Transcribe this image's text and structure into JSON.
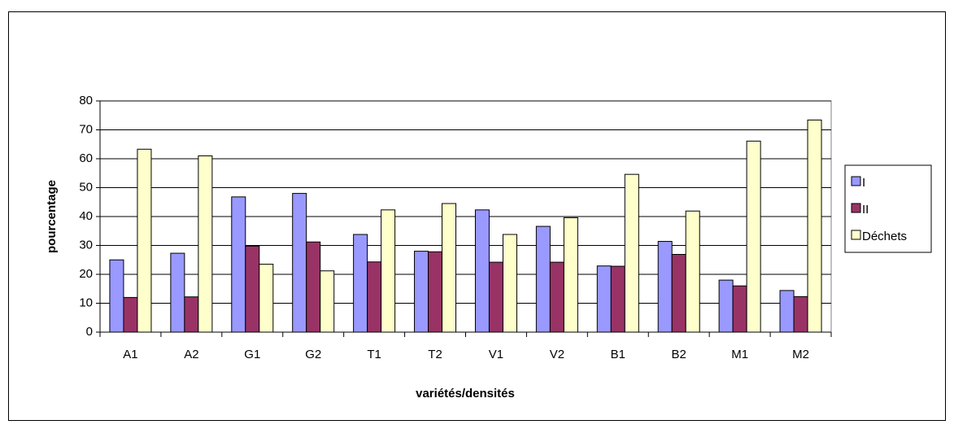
{
  "chart_data": {
    "type": "bar",
    "x_label": "variétés/densités",
    "y_label": "pourcentage",
    "categories": [
      "A1",
      "A2",
      "G1",
      "G2",
      "T1",
      "T2",
      "V1",
      "V2",
      "B1",
      "B2",
      "M1",
      "M2"
    ],
    "series": [
      {
        "name": "I",
        "color": "#9999ff",
        "values": [
          25,
          27.3,
          46.8,
          48,
          33.8,
          28,
          42.3,
          36.6,
          22.9,
          31.4,
          18,
          14.4
        ]
      },
      {
        "name": "II",
        "color": "#993366",
        "values": [
          12,
          12.2,
          29.8,
          31.2,
          24.3,
          27.8,
          24.2,
          24.2,
          22.8,
          26.9,
          16,
          12.3
        ]
      },
      {
        "name": "Déchets",
        "color": "#ffffcc",
        "values": [
          63.3,
          61,
          23.5,
          21.2,
          42.3,
          44.5,
          33.8,
          39.6,
          54.6,
          41.9,
          66.1,
          73.4
        ]
      }
    ],
    "ylim": [
      0,
      80
    ],
    "yticks": [
      0,
      10,
      20,
      30,
      40,
      50,
      60,
      70,
      80
    ],
    "grid": true,
    "legend": "right"
  }
}
